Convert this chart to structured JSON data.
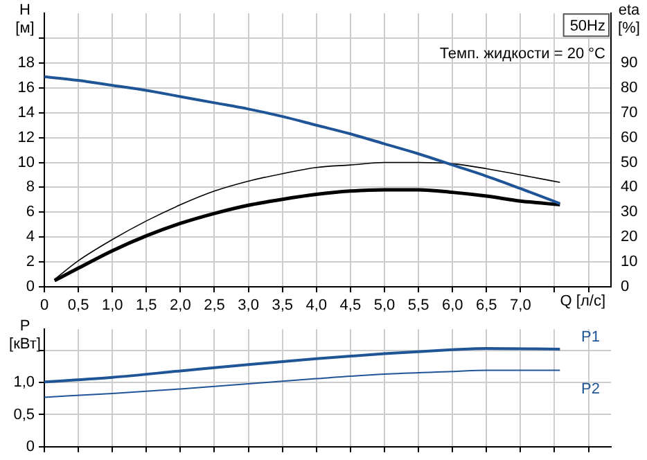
{
  "chart_data": [
    {
      "type": "line",
      "ylabel": "H [м]",
      "y2label": "eta [%]",
      "xlabel": "Q [л/с]",
      "annotations": [
        "50Hz",
        "Темп. жидкости = 20 °C"
      ],
      "xlim": [
        0,
        8.33
      ],
      "xticks": [
        {
          "value": 0,
          "label": "0"
        },
        {
          "value": 0.5,
          "label": "0,5"
        },
        {
          "value": 1,
          "label": "1,0"
        },
        {
          "value": 1.5,
          "label": "1,5"
        },
        {
          "value": 2,
          "label": "2,0"
        },
        {
          "value": 2.5,
          "label": "2,5"
        },
        {
          "value": 3,
          "label": "3,0"
        },
        {
          "value": 3.5,
          "label": "3,5"
        },
        {
          "value": 4,
          "label": "4,0"
        },
        {
          "value": 4.5,
          "label": "4,5"
        },
        {
          "value": 5,
          "label": "5,0"
        },
        {
          "value": 5.5,
          "label": "5,5"
        },
        {
          "value": 6,
          "label": "6,0"
        },
        {
          "value": 6.5,
          "label": "6,5"
        },
        {
          "value": 7,
          "label": "7,0"
        },
        {
          "value": 7.5,
          "label": null
        },
        {
          "value": 8,
          "label": null
        }
      ],
      "ylim": [
        0,
        22
      ],
      "yticks": [
        0,
        2,
        4,
        6,
        8,
        10,
        12,
        14,
        16,
        18,
        {
          "value": 20,
          "label": null
        }
      ],
      "y2lim": [
        0,
        110
      ],
      "y2ticks": [
        0,
        10,
        20,
        30,
        40,
        50,
        60,
        70,
        80,
        90
      ],
      "grid": true,
      "legend": false,
      "marker": "none",
      "line_style": "solid",
      "series": [
        {
          "color": "#1f5596",
          "x": [
            0,
            0.5,
            1,
            1.5,
            2,
            2.5,
            3,
            3.5,
            4,
            4.5,
            5,
            5.5,
            6,
            6.5,
            7,
            7.58
          ],
          "values": [
            16.9,
            16.6,
            16.2,
            15.8,
            15.3,
            14.8,
            14.3,
            13.7,
            13.0,
            12.3,
            11.5,
            10.7,
            9.8,
            8.9,
            7.9,
            6.7
          ]
        },
        {
          "color": "#000000",
          "axis": "y2",
          "x": [
            0.15,
            0.5,
            1,
            1.5,
            2,
            2.5,
            3,
            3.5,
            4,
            4.5,
            5,
            5.5,
            6,
            6.5,
            7,
            7.58
          ],
          "values": [
            3,
            10.5,
            19,
            26.5,
            33,
            38.5,
            42.5,
            45.5,
            48,
            49,
            50,
            50,
            49.5,
            47.5,
            45,
            42
          ]
        },
        {
          "color": "#000000",
          "axis": "y2",
          "x": [
            0.15,
            0.5,
            1,
            1.5,
            2,
            2.5,
            3,
            3.5,
            4,
            4.5,
            5,
            5.5,
            6,
            6.5,
            7,
            7.58
          ],
          "values": [
            2.5,
            7.5,
            14.5,
            20.5,
            25.5,
            29.5,
            32.8,
            35.2,
            37.2,
            38.5,
            39,
            39,
            38,
            36.5,
            34.5,
            33
          ]
        }
      ]
    },
    {
      "type": "line",
      "ylabel": "P [кВт]",
      "tick_labels": "y",
      "xlim": [
        0,
        8.33
      ],
      "xticks": [
        0,
        0.5,
        1,
        1.5,
        2,
        2.5,
        3,
        3.5,
        4,
        4.5,
        5,
        5.5,
        6,
        6.5,
        7,
        7.5,
        8
      ],
      "ylim": [
        0,
        1.83
      ],
      "yticks": [
        0,
        {
          "value": 0.5,
          "label": "0,5"
        },
        {
          "value": 1,
          "label": "1,0"
        },
        {
          "value": 1.5,
          "label": null
        }
      ],
      "grid": true,
      "legend": false,
      "marker": "none",
      "line_style": "solid",
      "series": [
        {
          "name": "P1",
          "color": "#1f5596",
          "x": [
            0,
            1,
            2,
            3,
            4,
            5,
            6,
            6.5,
            7.58
          ],
          "values": [
            1.01,
            1.08,
            1.18,
            1.28,
            1.37,
            1.45,
            1.51,
            1.53,
            1.52
          ]
        },
        {
          "name": "P2",
          "color": "#1f5596",
          "x": [
            0,
            1,
            2,
            3,
            4,
            5,
            6,
            6.5,
            7.58
          ],
          "values": [
            0.77,
            0.83,
            0.9,
            0.98,
            1.06,
            1.13,
            1.17,
            1.19,
            1.19
          ]
        }
      ]
    }
  ]
}
